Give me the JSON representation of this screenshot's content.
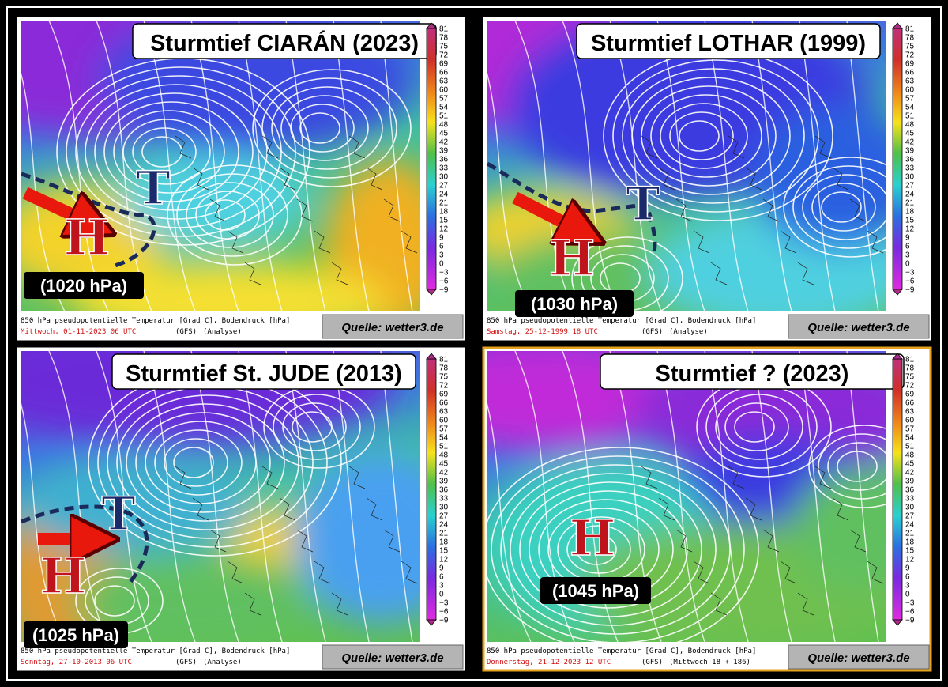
{
  "colorbar_ticks": [
    "81",
    "78",
    "75",
    "72",
    "69",
    "66",
    "63",
    "60",
    "57",
    "54",
    "51",
    "48",
    "45",
    "42",
    "39",
    "36",
    "33",
    "30",
    "27",
    "24",
    "21",
    "18",
    "15",
    "12",
    "9",
    "6",
    "3",
    "0",
    "−3",
    "−6",
    "−9"
  ],
  "panels": [
    {
      "title": "Sturmtief CIARÁN (2023)",
      "pressure": "(1020 hPa)",
      "high": "H",
      "low": "T",
      "caption": "850 hPa pseudopotentielle Temperatur [Grad C], Bodendruck [hPa]",
      "date": "Mittwoch, 01-11-2023  06 UTC",
      "model": "(GFS)",
      "run": "(Analyse)",
      "source": "Quelle: wetter3.de"
    },
    {
      "title": "Sturmtief LOTHAR (1999)",
      "pressure": "(1030 hPa)",
      "high": "H",
      "low": "T",
      "caption": "850 hPa pseudopotentielle Temperatur [Grad C], Bodendruck [hPa]",
      "date": "Samstag, 25-12-1999  18 UTC",
      "model": "(GFS)",
      "run": "(Analyse)",
      "source": "Quelle: wetter3.de"
    },
    {
      "title": "Sturmtief St. JUDE (2013)",
      "pressure": "(1025 hPa)",
      "high": "H",
      "low": "T",
      "caption": "850 hPa pseudopotentielle Temperatur [Grad C], Bodendruck [hPa]",
      "date": "Sonntag, 27-10-2013  06 UTC",
      "model": "(GFS)",
      "run": "(Analyse)",
      "source": "Quelle: wetter3.de"
    },
    {
      "title": "Sturmtief ? (2023)",
      "pressure": "(1045 hPa)",
      "high": "H",
      "caption": "850 hPa pseudopotentielle Temperatur [Grad C], Bodendruck [hPa]",
      "date": "Donnerstag, 21-12-2023  12 UTC",
      "model": "(GFS)",
      "run": "(Mittwoch 18 + 186)",
      "source": "Quelle: wetter3.de"
    }
  ]
}
